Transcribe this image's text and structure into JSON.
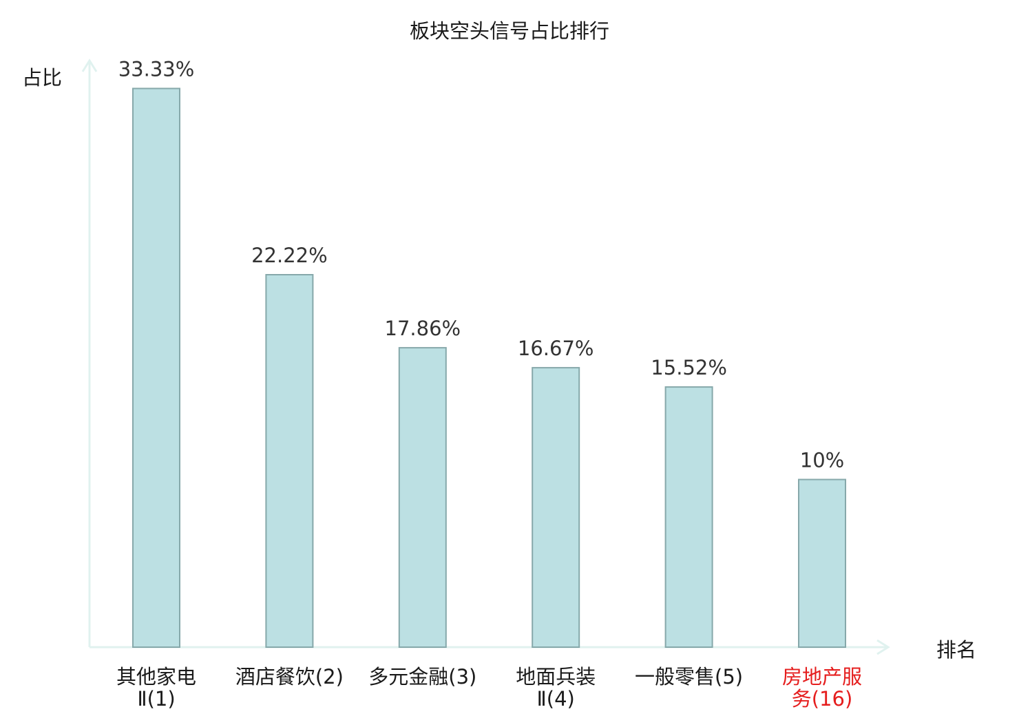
{
  "chart_data": {
    "type": "bar",
    "title": "板块空头信号占比排行",
    "xlabel": "排名",
    "ylabel": "占比",
    "categories": [
      {
        "lines": [
          "其他家电",
          "Ⅱ(1)"
        ],
        "highlight": false
      },
      {
        "lines": [
          "酒店餐饮(2)"
        ],
        "highlight": false
      },
      {
        "lines": [
          "多元金融(3)"
        ],
        "highlight": false
      },
      {
        "lines": [
          "地面兵装",
          "Ⅱ(4)"
        ],
        "highlight": false
      },
      {
        "lines": [
          "一般零售(5)"
        ],
        "highlight": false
      },
      {
        "lines": [
          "房地产服",
          "务(16)"
        ],
        "highlight": true
      }
    ],
    "values": [
      33.33,
      22.22,
      17.86,
      16.67,
      15.52,
      10
    ],
    "value_labels": [
      "33.33%",
      "22.22%",
      "17.86%",
      "16.67%",
      "15.52%",
      "10%"
    ],
    "ylim": [
      0,
      34.5
    ],
    "grid": false,
    "colors": {
      "bar_fill": "#bce0e3",
      "bar_stroke": "#86a8aa",
      "axis": "#e0f2ef",
      "label": "#1a1a1a",
      "value_label": "#333333",
      "highlight": "#e51d1d"
    }
  }
}
